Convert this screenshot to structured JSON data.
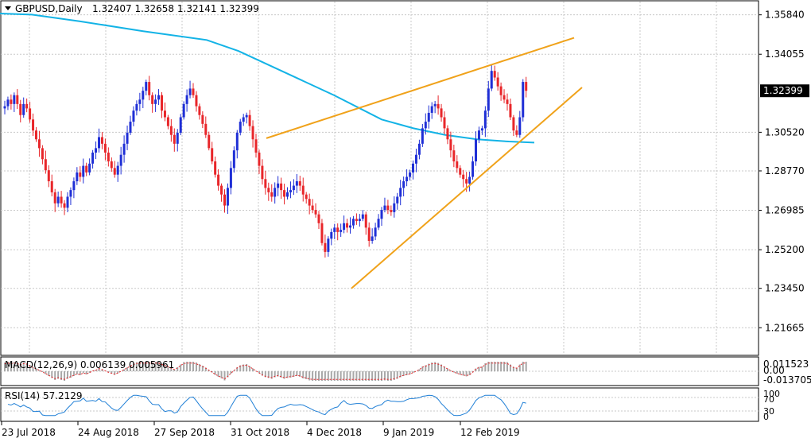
{
  "header": {
    "symbol": "GBPUSD,Daily",
    "ohlc": "1.32407 1.32658 1.32141 1.32399"
  },
  "colors": {
    "up": "#1f2fd6",
    "down": "#e8262a",
    "ma": "#13b3e6",
    "trend": "#f0a21a",
    "grid": "#c8c8c8",
    "macd_hist": "#a8a8a8",
    "macd_signal": "#e8262a",
    "rsi": "#1f7fd6",
    "price_label_bg": "#000000"
  },
  "chart_data": [
    {
      "type": "candlestick",
      "title": "GBPUSD,Daily",
      "x_ticks": [
        "23 Jul 2018",
        "24 Aug 2018",
        "27 Sep 2018",
        "31 Oct 2018",
        "4 Dec 2018",
        "9 Jan 2019",
        "12 Feb 2019"
      ],
      "y_ticks": [
        "1.35840",
        "1.34055",
        "1.32399",
        "1.30520",
        "1.28770",
        "1.26985",
        "1.25200",
        "1.23450",
        "1.21665"
      ],
      "y_tick_values": [
        1.3584,
        1.34055,
        1.32399,
        1.3052,
        1.2877,
        1.26985,
        1.252,
        1.2345,
        1.21665
      ],
      "ylim": [
        1.2045,
        1.3644
      ],
      "last_price": "1.32399",
      "candles_close": [
        1.317,
        1.32,
        1.318,
        1.322,
        1.318,
        1.313,
        1.318,
        1.316,
        1.311,
        1.306,
        1.302,
        1.298,
        1.293,
        1.288,
        1.283,
        1.278,
        1.273,
        1.276,
        1.273,
        1.271,
        1.276,
        1.279,
        1.283,
        1.287,
        1.285,
        1.29,
        1.287,
        1.291,
        1.296,
        1.298,
        1.303,
        1.3,
        1.296,
        1.292,
        1.289,
        1.286,
        1.29,
        1.295,
        1.3,
        1.305,
        1.31,
        1.315,
        1.318,
        1.32,
        1.324,
        1.328,
        1.322,
        1.318,
        1.32,
        1.322,
        1.315,
        1.312,
        1.308,
        1.304,
        1.3,
        1.305,
        1.312,
        1.318,
        1.322,
        1.325,
        1.322,
        1.317,
        1.313,
        1.309,
        1.304,
        1.298,
        1.292,
        1.286,
        1.281,
        1.277,
        1.272,
        1.28,
        1.289,
        1.297,
        1.305,
        1.31,
        1.312,
        1.313,
        1.308,
        1.302,
        1.296,
        1.29,
        1.284,
        1.28,
        1.278,
        1.276,
        1.28,
        1.282,
        1.279,
        1.276,
        1.278,
        1.279,
        1.281,
        1.283,
        1.281,
        1.277,
        1.275,
        1.272,
        1.27,
        1.268,
        1.264,
        1.255,
        1.251,
        1.257,
        1.26,
        1.262,
        1.26,
        1.261,
        1.264,
        1.262,
        1.263,
        1.266,
        1.265,
        1.266,
        1.268,
        1.262,
        1.256,
        1.258,
        1.262,
        1.266,
        1.27,
        1.272,
        1.27,
        1.269,
        1.273,
        1.276,
        1.28,
        1.283,
        1.285,
        1.287,
        1.291,
        1.295,
        1.3,
        1.307,
        1.31,
        1.314,
        1.317,
        1.318,
        1.316,
        1.312,
        1.307,
        1.302,
        1.297,
        1.292,
        1.289,
        1.286,
        1.284,
        1.282,
        1.285,
        1.292,
        1.302,
        1.306,
        1.307,
        1.315,
        1.325,
        1.333,
        1.33,
        1.326,
        1.322,
        1.32,
        1.318,
        1.312,
        1.306,
        1.304,
        1.312,
        1.328,
        1.324
      ],
      "ma_200": [
        [
          0,
          1.359
        ],
        [
          40,
          1.3585
        ],
        [
          100,
          1.3555
        ],
        [
          180,
          1.351
        ],
        [
          260,
          1.347
        ],
        [
          300,
          1.342
        ],
        [
          360,
          1.332
        ],
        [
          420,
          1.322
        ],
        [
          480,
          1.311
        ],
        [
          520,
          1.307
        ],
        [
          560,
          1.304
        ],
        [
          600,
          1.302
        ],
        [
          640,
          1.301
        ],
        [
          672,
          1.3005
        ]
      ],
      "trendlines": [
        {
          "from": [
            335,
            1.3025
          ],
          "to": [
            722,
            1.348
          ]
        },
        {
          "from": [
            442,
            1.2345
          ],
          "to": [
            732,
            1.3255
          ]
        }
      ]
    },
    {
      "type": "bar",
      "title": "MACD(12,26,9)",
      "label": "MACD(12,26,9) 0.006139 0.005961",
      "y_ticks": [
        "0.011523",
        "0.00",
        "-0.013705"
      ],
      "ylim": [
        -0.013705,
        0.011523
      ]
    },
    {
      "type": "line",
      "title": "RSI(14)",
      "label": "RSI(14) 57.2129",
      "y_ticks": [
        "100",
        "70",
        "30",
        "0"
      ],
      "ylim": [
        0,
        100
      ]
    }
  ]
}
